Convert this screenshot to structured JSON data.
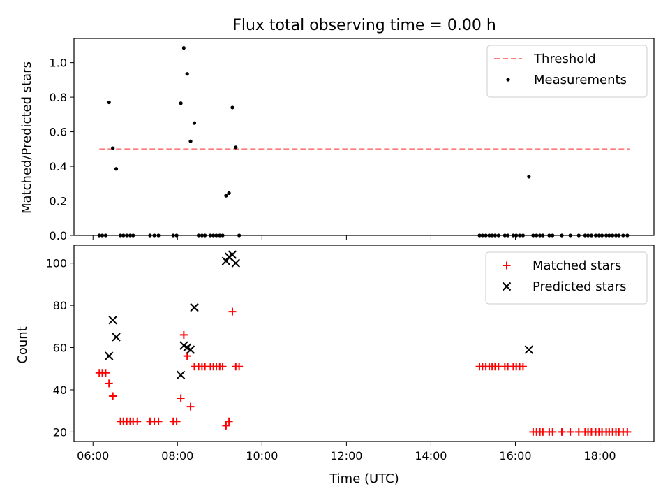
{
  "title": "Flux total observing time = 0.00 h",
  "chart_data": [
    {
      "type": "scatter",
      "ylabel": "Matched/Predicted stars",
      "xlim": [
        5.55,
        19.28
      ],
      "ylim": [
        0,
        1.14
      ],
      "yticks": [
        "0.0",
        "0.2",
        "0.4",
        "0.6",
        "0.8",
        "1.0"
      ],
      "grid": false,
      "legend_position": "top-right",
      "threshold": {
        "name": "Threshold",
        "color": "#ff7b7b",
        "y": 0.5,
        "x_range": [
          6.15,
          18.7
        ]
      },
      "series": [
        {
          "name": "Measurements",
          "color": "#000000",
          "marker": "dot",
          "x": [
            6.38,
            6.47,
            6.55,
            8.08,
            8.15,
            8.23,
            8.31,
            8.4,
            9.15,
            9.22,
            9.3,
            9.38,
            16.32
          ],
          "y": [
            0.77,
            0.505,
            0.385,
            0.765,
            1.085,
            0.935,
            0.545,
            0.65,
            0.23,
            0.245,
            0.74,
            0.51,
            0.34
          ]
        },
        {
          "name": "",
          "color": "#000000",
          "marker": "dot",
          "x": [
            6.15,
            6.22,
            6.3,
            6.65,
            6.72,
            6.8,
            6.88,
            6.95,
            7.35,
            7.45,
            7.55,
            7.9,
            7.98,
            8.5,
            8.58,
            8.65,
            8.78,
            8.85,
            8.92,
            9.0,
            9.07,
            9.46,
            15.15,
            15.22,
            15.3,
            15.38,
            15.45,
            15.52,
            15.6,
            15.75,
            15.82,
            15.95,
            16.02,
            16.1,
            16.18,
            16.42,
            16.5,
            16.58,
            16.65,
            16.8,
            16.88,
            17.1,
            17.3,
            17.5,
            17.65,
            17.72,
            17.8,
            17.9,
            17.98,
            18.05,
            18.15,
            18.22,
            18.3,
            18.38,
            18.45,
            18.55,
            18.65
          ],
          "y": [
            0,
            0,
            0,
            0,
            0,
            0,
            0,
            0,
            0,
            0,
            0,
            0,
            0,
            0,
            0,
            0,
            0,
            0,
            0,
            0,
            0,
            0,
            0,
            0,
            0,
            0,
            0,
            0,
            0,
            0,
            0,
            0,
            0,
            0,
            0,
            0,
            0,
            0,
            0,
            0,
            0,
            0,
            0,
            0,
            0,
            0,
            0,
            0,
            0,
            0,
            0,
            0,
            0,
            0,
            0,
            0,
            0
          ]
        }
      ]
    },
    {
      "type": "scatter",
      "ylabel": "Count",
      "xlabel": "Time (UTC)",
      "xlim": [
        5.55,
        19.28
      ],
      "ylim": [
        15.5,
        108.5
      ],
      "yticks": [
        "20",
        "40",
        "60",
        "80",
        "100"
      ],
      "xticks": [
        "06:00",
        "08:00",
        "10:00",
        "12:00",
        "14:00",
        "16:00",
        "18:00"
      ],
      "grid": false,
      "legend_position": "top-right",
      "series": [
        {
          "name": "Matched stars",
          "color": "#ff0000",
          "marker": "plus",
          "x": [
            6.15,
            6.22,
            6.3,
            6.38,
            6.47,
            6.65,
            6.72,
            6.8,
            6.88,
            6.95,
            7.05,
            7.35,
            7.45,
            7.55,
            7.9,
            7.98,
            8.08,
            8.15,
            8.23,
            8.31,
            8.4,
            8.5,
            8.58,
            8.65,
            8.78,
            8.85,
            8.92,
            9.0,
            9.07,
            9.15,
            9.22,
            9.3,
            9.38,
            9.46,
            15.15,
            15.22,
            15.3,
            15.38,
            15.45,
            15.52,
            15.6,
            15.75,
            15.82,
            15.95,
            16.02,
            16.1,
            16.18,
            16.42,
            16.5,
            16.58,
            16.65,
            16.8,
            16.88,
            17.1,
            17.3,
            17.5,
            17.65,
            17.72,
            17.8,
            17.9,
            17.98,
            18.05,
            18.15,
            18.22,
            18.3,
            18.38,
            18.45,
            18.55,
            18.65
          ],
          "y": [
            48,
            48,
            48,
            43,
            37,
            25,
            25,
            25,
            25,
            25,
            25,
            25,
            25,
            25,
            25,
            25,
            36,
            66,
            56,
            32,
            51,
            51,
            51,
            51,
            51,
            51,
            51,
            51,
            51,
            23,
            25,
            77,
            51,
            51,
            51,
            51,
            51,
            51,
            51,
            51,
            51,
            51,
            51,
            51,
            51,
            51,
            51,
            20,
            20,
            20,
            20,
            20,
            20,
            20,
            20,
            20,
            20,
            20,
            20,
            20,
            20,
            20,
            20,
            20,
            20,
            20,
            20,
            20,
            20
          ]
        },
        {
          "name": "Predicted stars",
          "color": "#000000",
          "marker": "x",
          "x": [
            6.38,
            6.47,
            6.55,
            8.08,
            8.15,
            8.23,
            8.31,
            8.4,
            9.15,
            9.22,
            9.3,
            9.38,
            16.32
          ],
          "y": [
            56,
            73,
            65,
            47,
            61,
            60,
            59,
            79,
            101,
            103,
            104,
            100,
            59
          ]
        }
      ]
    }
  ]
}
